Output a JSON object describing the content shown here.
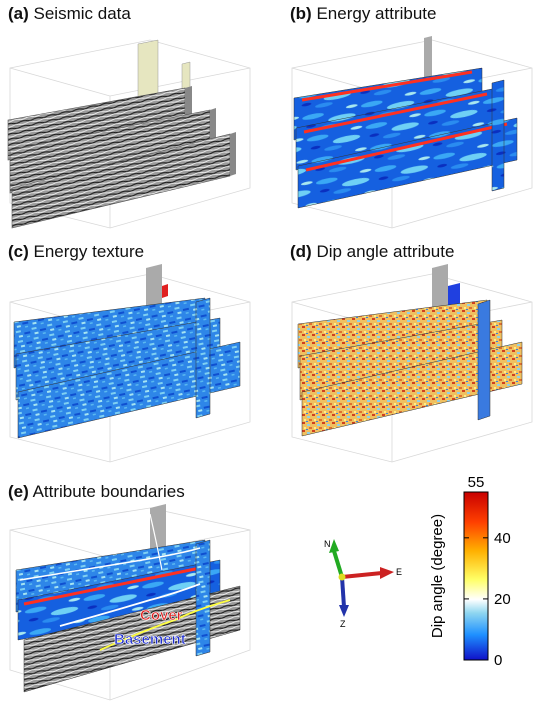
{
  "panels": [
    {
      "id": "a",
      "label": "(a)",
      "title": "Seismic data"
    },
    {
      "id": "b",
      "label": "(b)",
      "title": "Energy attribute"
    },
    {
      "id": "c",
      "label": "(c)",
      "title": "Energy texture"
    },
    {
      "id": "d",
      "label": "(d)",
      "title": "Dip angle attribute"
    },
    {
      "id": "e",
      "label": "(e)",
      "title": "Attribute boundaries"
    }
  ],
  "annotations": {
    "cover": "Cover",
    "basement": "Basement"
  },
  "compass": {
    "north": "N",
    "east": "E",
    "z": "Z"
  },
  "colorbar": {
    "label": "Dip angle (degree)",
    "ticks": [
      "55",
      "40",
      "20",
      "0"
    ],
    "tick_values": [
      55,
      40,
      20,
      0
    ],
    "min": 0,
    "max": 55,
    "colors": [
      "#1010c8",
      "#1e90ff",
      "#8fd6f0",
      "#ffffff",
      "#ffff66",
      "#ffb000",
      "#ff4000",
      "#c80000"
    ]
  }
}
